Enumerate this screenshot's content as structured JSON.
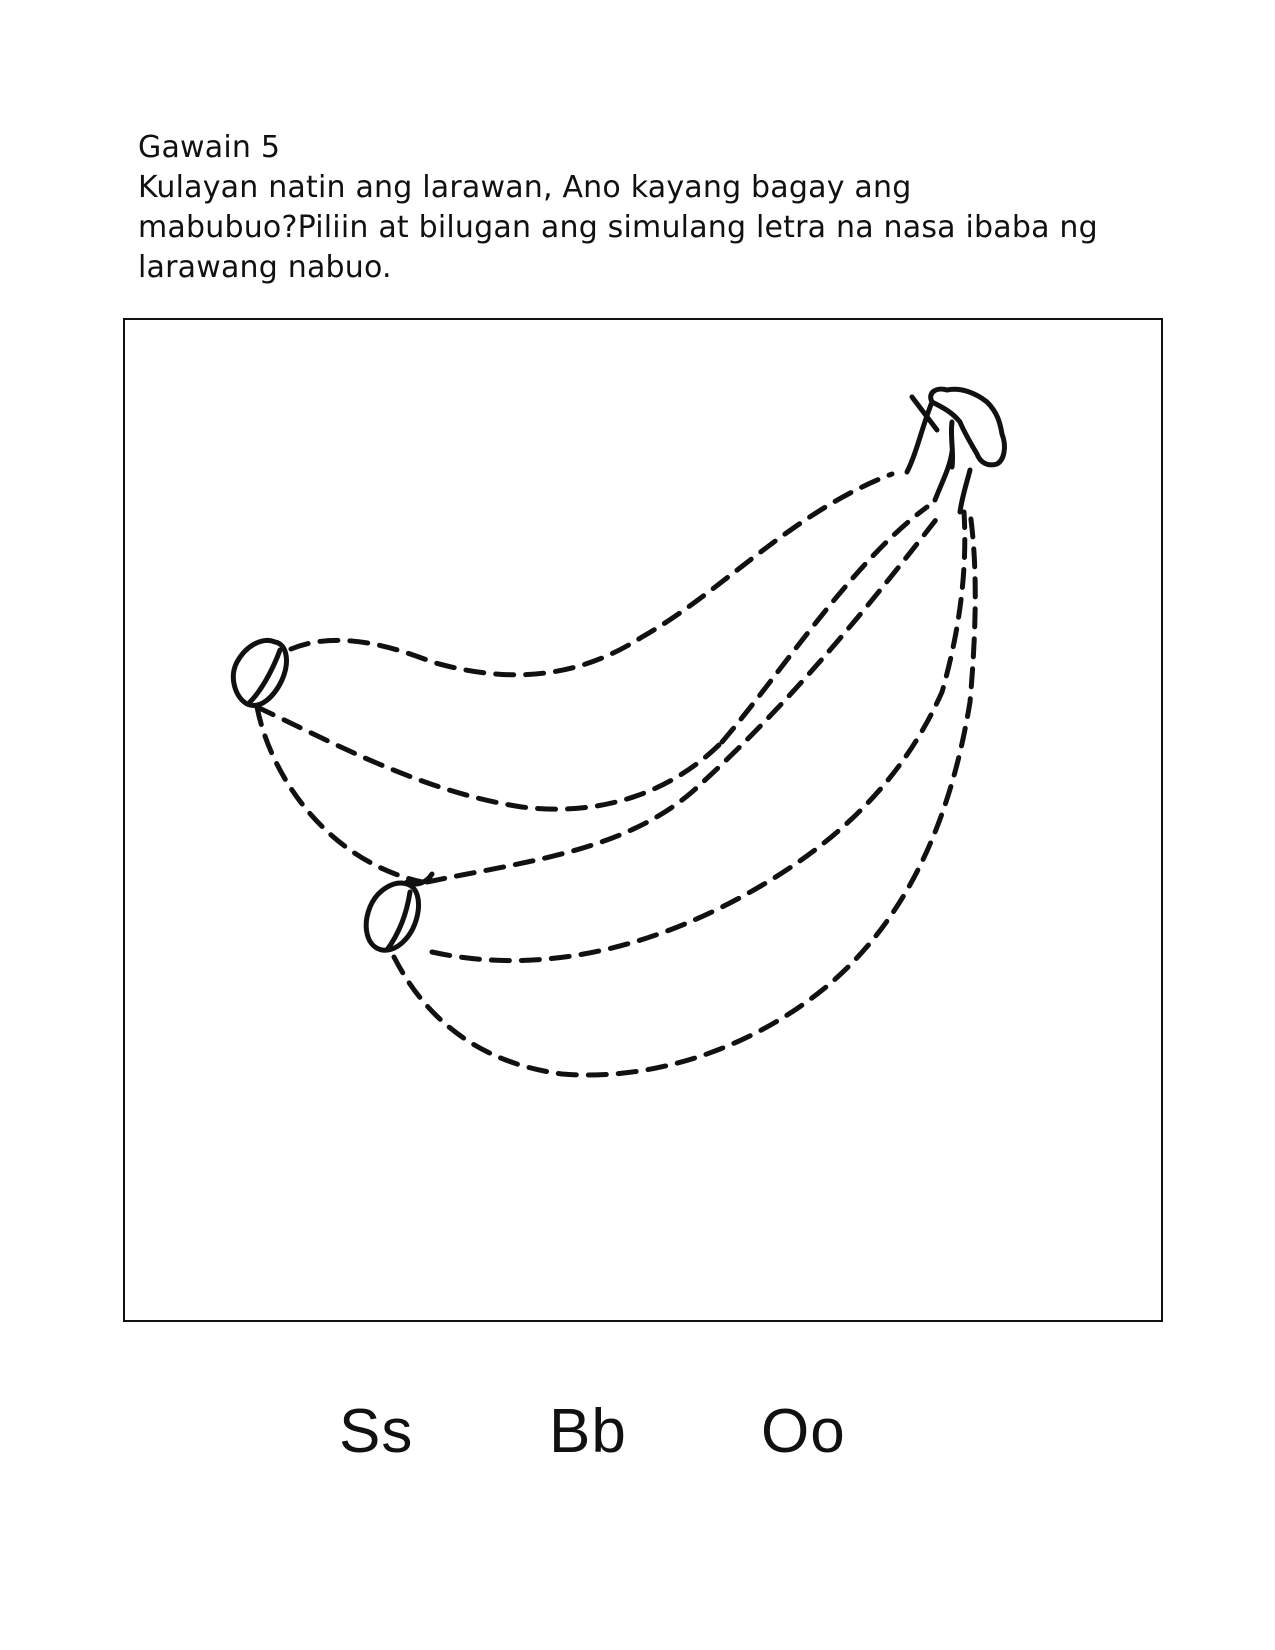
{
  "activity": {
    "title": "Gawain 5",
    "instruction_lines": [
      "Kulayan natin ang larawan, Ano kayang bagay ang",
      "mabubuo?Piliin at bilugan ang simulang letra na nasa ibaba ng",
      "larawang nabuo."
    ]
  },
  "picture": {
    "icon": "banana-bunch-outline-icon"
  },
  "choices": [
    "Ss",
    "Bb",
    "Oo"
  ]
}
